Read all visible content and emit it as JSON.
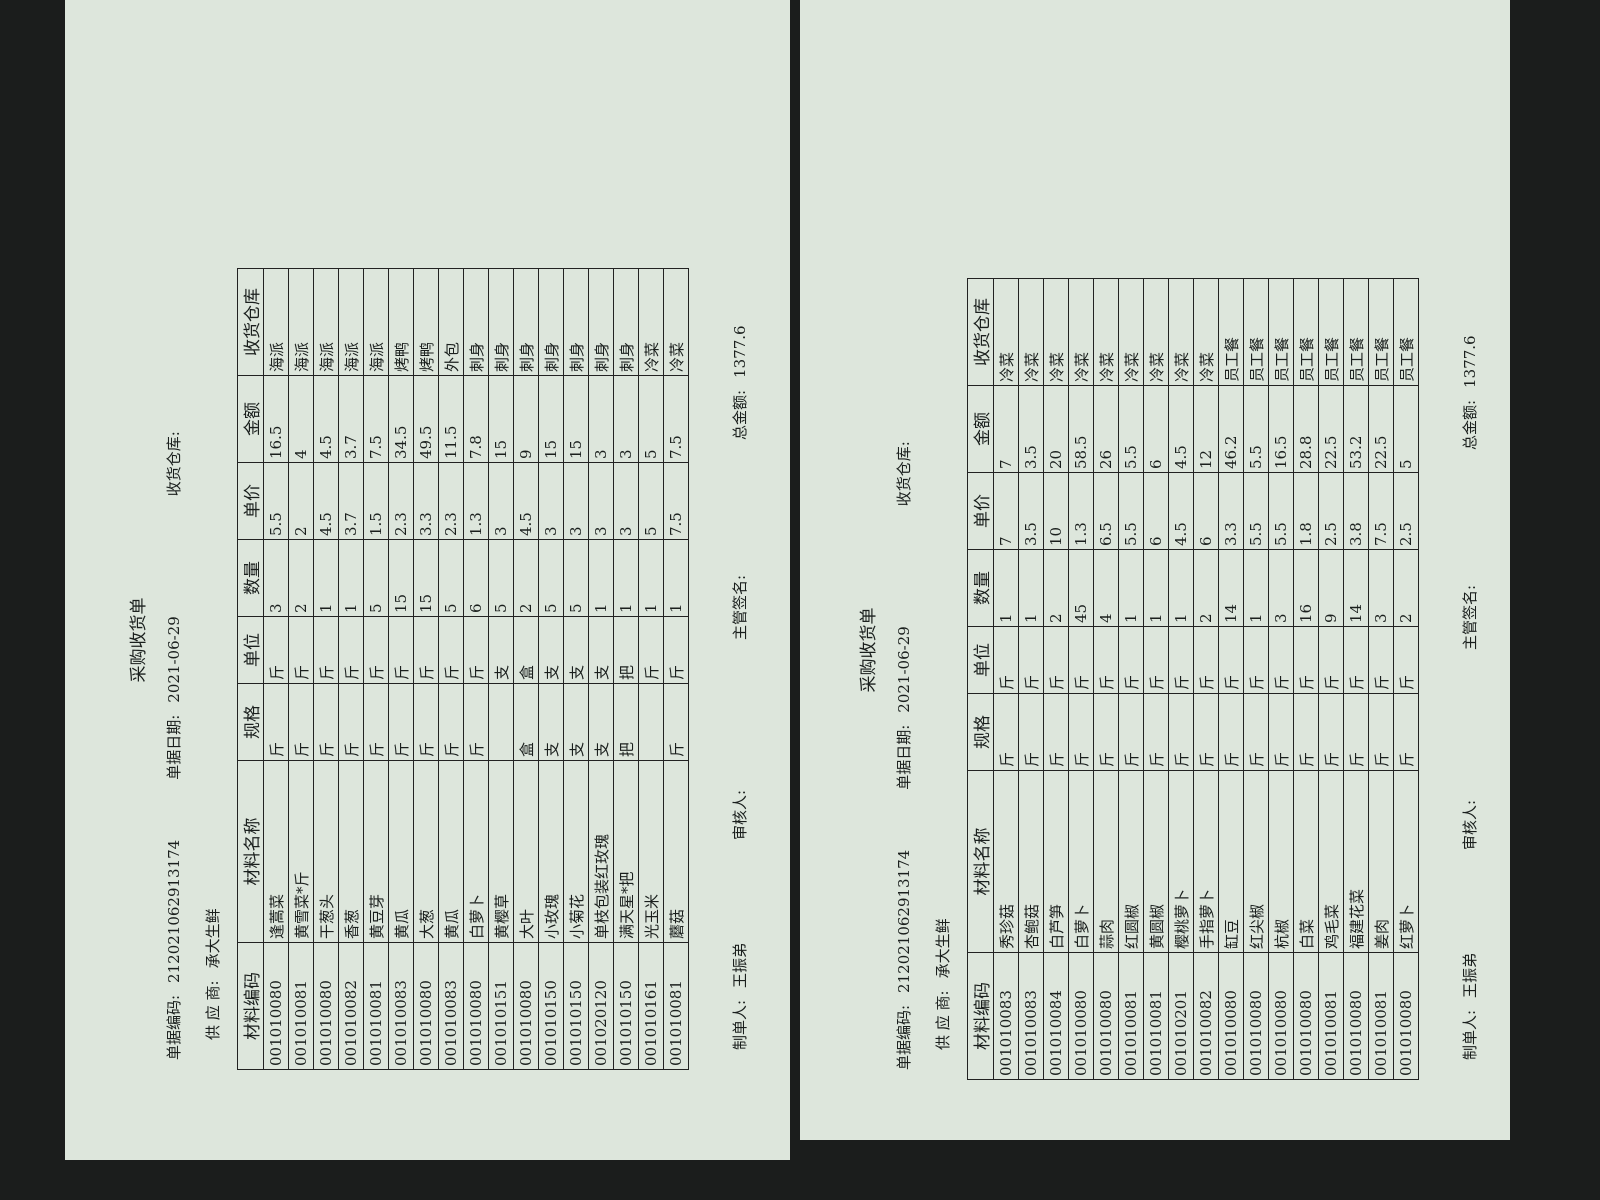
{
  "forms": [
    {
      "title": "采购收货单",
      "doc_number_label": "单据编码:",
      "doc_number": "21202106291317​4",
      "date_label": "单据日期:",
      "date": "2021-06-29",
      "supplier_label": "供 应 商:",
      "supplier": "承大生鲜",
      "warehouse_label": "收货仓库:",
      "headers": [
        "材料编码",
        "材料名称",
        "规格",
        "单位",
        "数量",
        "单价",
        "金额",
        "收货仓库"
      ],
      "rows": [
        [
          "001010080",
          "逢蒿菜",
          "斤",
          "斤",
          "3",
          "5.5",
          "16.5",
          "海派"
        ],
        [
          "001010081",
          "黄雪菜*斤",
          "斤",
          "斤",
          "2",
          "2",
          "4",
          "海派"
        ],
        [
          "001010080",
          "干葱头",
          "斤",
          "斤",
          "1",
          "4.5",
          "4.5",
          "海派"
        ],
        [
          "001010082",
          "香葱",
          "斤",
          "斤",
          "1",
          "3.7",
          "3.7",
          "海派"
        ],
        [
          "001010081",
          "黄豆芽",
          "斤",
          "斤",
          "5",
          "1.5",
          "7.5",
          "海派"
        ],
        [
          "001010083",
          "黄瓜",
          "斤",
          "斤",
          "15",
          "2.3",
          "34.5",
          "烤鸭"
        ],
        [
          "001010080",
          "大葱",
          "斤",
          "斤",
          "15",
          "3.3",
          "49.5",
          "烤鸭"
        ],
        [
          "001010083",
          "黄瓜",
          "斤",
          "斤",
          "5",
          "2.3",
          "11.5",
          "外包"
        ],
        [
          "001010080",
          "白萝卜",
          "斤",
          "斤",
          "6",
          "1.3",
          "7.8",
          "刺身"
        ],
        [
          "001010151",
          "黄樱草",
          null,
          "支",
          "5",
          "3",
          "15",
          "刺身"
        ],
        [
          "001010080",
          "大叶",
          "盒",
          "盒",
          "2",
          "4.5",
          "9",
          "刺身"
        ],
        [
          "001010150",
          "小玫瑰",
          "支",
          "支",
          "5",
          "3",
          "15",
          "刺身"
        ],
        [
          "001010150",
          "小菊花",
          "支",
          "支",
          "5",
          "3",
          "15",
          "刺身"
        ],
        [
          "001020120",
          "单枝包装红玫瑰",
          "支",
          "支",
          "1",
          "3",
          "3",
          "刺身"
        ],
        [
          "001010150",
          "满天星*把",
          "把",
          "把",
          "1",
          "3",
          "3",
          "刺身"
        ],
        [
          "001010161",
          "光玉米",
          null,
          "斤",
          "1",
          "5",
          "5",
          "冷菜"
        ],
        [
          "001010081",
          "蘑菇",
          "斤",
          "斤",
          "1",
          "7.5",
          "7.5",
          "冷菜"
        ]
      ],
      "maker_label": "制单人:",
      "maker": "王振弟",
      "reviewer_label": "审核人:",
      "manager_label": "主管签名:",
      "total_label": "总金额:",
      "total": "1377.6"
    },
    {
      "title": "采购收货单",
      "doc_number_label": "单据编码:",
      "doc_number": "21202106291317​4",
      "date_label": "单据日期:",
      "date": "2021-06-29",
      "supplier_label": "供 应 商:",
      "supplier": "承大生鲜",
      "warehouse_label": "收货仓库:",
      "headers": [
        "材料编码",
        "材料名称",
        "规格",
        "单位",
        "数量",
        "单价",
        "金额",
        "收货仓库"
      ],
      "rows": [
        [
          "001010083",
          "秀珍菇",
          "斤",
          "斤",
          "1",
          "7",
          "7",
          "冷菜"
        ],
        [
          "001010083",
          "杏鲍菇",
          "斤",
          "斤",
          "1",
          "3.5",
          "3.5",
          "冷菜"
        ],
        [
          "001010084",
          "白芦笋",
          "斤",
          "斤",
          "2",
          "10",
          "20",
          "冷菜"
        ],
        [
          "001010080",
          "白萝卜",
          "斤",
          "斤",
          "45",
          "1.3",
          "58.5",
          "冷菜"
        ],
        [
          "001010080",
          "蒜肉",
          "斤",
          "斤",
          "4",
          "6.5",
          "26",
          "冷菜"
        ],
        [
          "001010081",
          "红圆椒",
          "斤",
          "斤",
          "1",
          "5.5",
          "5.5",
          "冷菜"
        ],
        [
          "001010081",
          "黄圆椒",
          "斤",
          "斤",
          "1",
          "6",
          "6",
          "冷菜"
        ],
        [
          "001010201",
          "樱桃萝卜",
          "斤",
          "斤",
          "1",
          "4.5",
          "4.5",
          "冷菜"
        ],
        [
          "001010082",
          "手指萝卜",
          "斤",
          "斤",
          "2",
          "6",
          "12",
          "冷菜"
        ],
        [
          "001010080",
          "缸豆",
          "斤",
          "斤",
          "14",
          "3.3",
          "46.2",
          "员工餐"
        ],
        [
          "001010080",
          "红尖椒",
          "斤",
          "斤",
          "1",
          "5.5",
          "5.5",
          "员工餐"
        ],
        [
          "001010080",
          "杭椒",
          "斤",
          "斤",
          "3",
          "5.5",
          "16.5",
          "员工餐"
        ],
        [
          "001010080",
          "白菜",
          "斤",
          "斤",
          "16",
          "1.8",
          "28.8",
          "员工餐"
        ],
        [
          "001010081",
          "鸡毛菜",
          "斤",
          "斤",
          "9",
          "2.5",
          "22.5",
          "员工餐"
        ],
        [
          "001010080",
          "福建花菜",
          "斤",
          "斤",
          "14",
          "3.8",
          "53.2",
          "员工餐"
        ],
        [
          "001010081",
          "姜肉",
          "斤",
          "斤",
          "3",
          "7.5",
          "22.5",
          "员工餐"
        ],
        [
          "001010080",
          "红萝卜",
          "斤",
          "斤",
          "2",
          "2.5",
          "5",
          "员工餐"
        ]
      ],
      "maker_label": "制单人:",
      "maker": "王振弟",
      "reviewer_label": "审核人:",
      "manager_label": "主管签名:",
      "total_label": "总金额:",
      "total": "1377.6"
    }
  ]
}
